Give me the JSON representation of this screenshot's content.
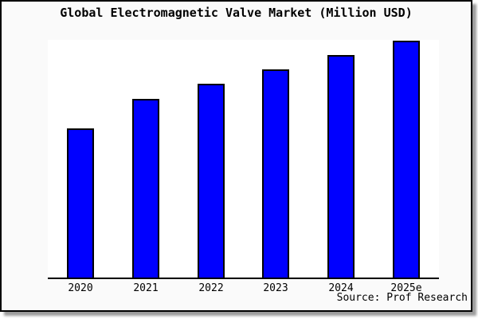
{
  "frame": {
    "background": "#fafafa",
    "border_color": "#000000",
    "shadow_color": "#9b9b9b"
  },
  "chart_data": {
    "type": "bar",
    "title": "Global Electromagnetic Valve Market (Million USD)",
    "categories": [
      "2020",
      "2021",
      "2022",
      "2023",
      "2024",
      "2025e"
    ],
    "values": [
      62.9,
      75.3,
      81.9,
      88.0,
      94.0,
      100.0
    ],
    "unit": "index, 2025e = 100 (y-axis has no tick labels in chart)",
    "ylim": [
      0,
      100.3
    ],
    "xlabel": "",
    "ylabel": "",
    "grid": false,
    "legend": false,
    "bar_color": "#0000ff",
    "bar_border_color": "#000000",
    "plot_background": "#ffffff",
    "axis_color": "#000000",
    "source": "Source: Prof Research"
  }
}
